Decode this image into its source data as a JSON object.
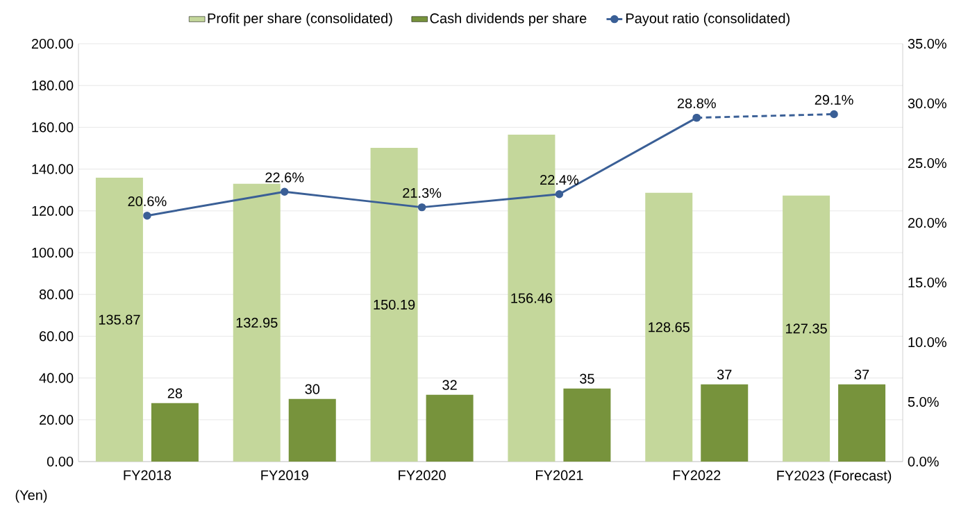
{
  "chart_data": {
    "type": "bar",
    "ylabel": "(Yen)",
    "categories": [
      "FY2018",
      "FY2019",
      "FY2020",
      "FY2021",
      "FY2022",
      "FY2023 (Forecast)"
    ],
    "series": [
      {
        "name": "Profit per share (consolidated)",
        "color": "#c4d79b",
        "values": [
          135.87,
          132.95,
          150.19,
          156.46,
          128.65,
          127.35
        ],
        "value_labels": [
          "135.87",
          "132.95",
          "150.19",
          "156.46",
          "128.65",
          "127.35"
        ]
      },
      {
        "name": "Cash dividends per share",
        "color": "#77933c",
        "values": [
          28,
          30,
          32,
          35,
          37,
          37
        ],
        "value_labels": [
          "28",
          "30",
          "32",
          "35",
          "37",
          "37"
        ]
      },
      {
        "name": "Payout ratio (consolidated)",
        "type": "line",
        "axis": "y2",
        "color": "#3a5f96",
        "marker": "circle",
        "line_style": "solid",
        "values": [
          20.6,
          22.6,
          21.3,
          22.4,
          28.8,
          null
        ],
        "value_labels": [
          "20.6%",
          "22.6%",
          "21.3%",
          "22.4%",
          "28.8%",
          null
        ]
      },
      {
        "type": "line",
        "axis": "y2",
        "color": "#3a5f96",
        "marker": "circle",
        "line_style": "dashed",
        "values": [
          null,
          null,
          null,
          null,
          28.8,
          29.1
        ],
        "value_labels": [
          null,
          null,
          null,
          null,
          null,
          "29.1%"
        ]
      }
    ],
    "ylim": [
      0,
      200
    ],
    "yticks": [
      {
        "value": 0,
        "label": "0.00"
      },
      {
        "value": 20,
        "label": "20.00"
      },
      {
        "value": 40,
        "label": "40.00"
      },
      {
        "value": 60,
        "label": "60.00"
      },
      {
        "value": 80,
        "label": "80.00"
      },
      {
        "value": 100,
        "label": "100.00"
      },
      {
        "value": 120,
        "label": "120.00"
      },
      {
        "value": 140,
        "label": "140.00"
      },
      {
        "value": 160,
        "label": "160.00"
      },
      {
        "value": 180,
        "label": "180.00"
      },
      {
        "value": 200,
        "label": "200.00"
      }
    ],
    "y2lim": [
      0,
      35
    ],
    "y2ticks": [
      {
        "value": 0,
        "label": "0.0%"
      },
      {
        "value": 5,
        "label": "5.0%"
      },
      {
        "value": 10,
        "label": "10.0%"
      },
      {
        "value": 15,
        "label": "15.0%"
      },
      {
        "value": 20,
        "label": "20.0%"
      },
      {
        "value": 25,
        "label": "25.0%"
      },
      {
        "value": 30,
        "label": "30.0%"
      },
      {
        "value": 35,
        "label": "35.0%"
      }
    ],
    "grid": "y",
    "legend": "top"
  }
}
